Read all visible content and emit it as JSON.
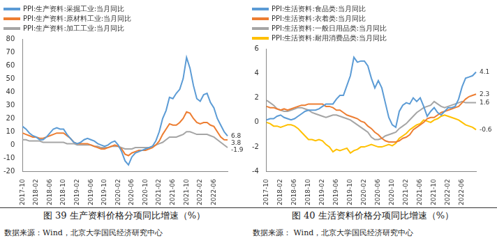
{
  "chart_data": [
    {
      "type": "line",
      "title": "图 39 生产资料价格分项同比增速（%）",
      "source": "数据来源：Wind，北京大学国民经济研究中心",
      "legend": "top",
      "categories": [
        "2017-10",
        null,
        null,
        null,
        "2018-02",
        null,
        null,
        null,
        "2018-06",
        null,
        null,
        null,
        "2018-10",
        null,
        null,
        null,
        "2019-02",
        null,
        null,
        null,
        "2019-06",
        null,
        null,
        null,
        "2019-10",
        null,
        null,
        null,
        "2020-02",
        null,
        null,
        null,
        "2020-06",
        null,
        null,
        null,
        "2020-10",
        null,
        null,
        null,
        "2021-02",
        null,
        null,
        null,
        "2021-06",
        null,
        null,
        null,
        "2021-10",
        null,
        null,
        null,
        "2022-02",
        null,
        null,
        null,
        "2022-06",
        null,
        null,
        null,
        null
      ],
      "ylim": [
        -20,
        80
      ],
      "yticks": [
        -20,
        -10,
        0,
        10,
        20,
        30,
        40,
        50,
        60,
        70,
        80
      ],
      "series": [
        {
          "name": "PPI:生产资料:采掘工业:当月同比",
          "color": "#5b9bd5",
          "values": [
            14,
            12,
            9,
            7,
            6,
            4,
            4,
            6,
            9,
            12,
            13,
            12,
            12,
            8,
            5,
            2,
            1,
            2,
            4,
            5,
            4,
            3,
            1,
            0,
            -1,
            0,
            2,
            3,
            0,
            -5,
            -12,
            -15,
            -9,
            -6,
            -5,
            -4,
            -3,
            -2,
            -1,
            3,
            10,
            20,
            26,
            36,
            35,
            39,
            42,
            50,
            66,
            58,
            45,
            35,
            33,
            38,
            39,
            32,
            28,
            20,
            15,
            10,
            6.8
          ],
          "value_labels": [
            null,
            null,
            null,
            null,
            null,
            null,
            null,
            null,
            null,
            null,
            null,
            null,
            null,
            null,
            null,
            null,
            null,
            null,
            null,
            null,
            null,
            null,
            null,
            null,
            null,
            null,
            null,
            null,
            null,
            null,
            null,
            null,
            null,
            null,
            null,
            null,
            null,
            null,
            null,
            null,
            null,
            null,
            null,
            null,
            null,
            null,
            null,
            null,
            null,
            null,
            null,
            null,
            null,
            null,
            null,
            null,
            null,
            null,
            null,
            null,
            "6.8"
          ]
        },
        {
          "name": "PPI:生产资料:原材料工业:当月同比",
          "color": "#ed7d31",
          "values": [
            9,
            8,
            7,
            6,
            6,
            5,
            5,
            6,
            7,
            8,
            9,
            9,
            9,
            7,
            5,
            2,
            1,
            1,
            1,
            1,
            0,
            -1,
            -2,
            -3,
            -3,
            -2,
            -1,
            0,
            -1,
            -3,
            -7,
            -8,
            -6,
            -5,
            -4,
            -4,
            -4,
            -3,
            -2,
            0,
            3,
            8,
            12,
            16,
            15,
            15,
            17,
            20,
            25,
            24,
            20,
            17,
            16,
            17,
            17,
            15,
            14,
            10,
            6,
            4,
            3.8
          ],
          "value_labels": [
            null,
            null,
            null,
            null,
            null,
            null,
            null,
            null,
            null,
            null,
            null,
            null,
            null,
            null,
            null,
            null,
            null,
            null,
            null,
            null,
            null,
            null,
            null,
            null,
            null,
            null,
            null,
            null,
            null,
            null,
            null,
            null,
            null,
            null,
            null,
            null,
            null,
            null,
            null,
            null,
            null,
            null,
            null,
            null,
            null,
            null,
            null,
            null,
            null,
            null,
            null,
            null,
            null,
            null,
            null,
            null,
            null,
            null,
            null,
            null,
            "3.8"
          ]
        },
        {
          "name": "PPI:生产资料:加工工业:当月同比",
          "color": "#a5a5a5",
          "values": [
            4,
            4,
            3,
            3,
            3,
            3,
            2,
            2,
            2,
            2,
            2,
            2,
            2,
            1,
            1,
            1,
            0,
            0,
            0,
            0,
            0,
            -1,
            -1,
            -2,
            -2,
            -2,
            -1,
            -1,
            -1,
            -2,
            -3,
            -3,
            -3,
            -2,
            -2,
            -2,
            -2,
            -2,
            -1,
            0,
            1,
            2,
            4,
            6,
            6,
            6,
            7,
            8,
            10,
            10,
            9,
            8,
            8,
            8,
            8,
            7,
            6,
            4,
            2,
            0,
            -1.9
          ],
          "value_labels": [
            null,
            null,
            null,
            null,
            null,
            null,
            null,
            null,
            null,
            null,
            null,
            null,
            null,
            null,
            null,
            null,
            null,
            null,
            null,
            null,
            null,
            null,
            null,
            null,
            null,
            null,
            null,
            null,
            null,
            null,
            null,
            null,
            null,
            null,
            null,
            null,
            null,
            null,
            null,
            null,
            null,
            null,
            null,
            null,
            null,
            null,
            null,
            null,
            null,
            null,
            null,
            null,
            null,
            null,
            null,
            null,
            null,
            null,
            null,
            null,
            "-1.9"
          ]
        }
      ]
    },
    {
      "type": "line",
      "title": "图 40 生活资料价格分项同比增速（%）",
      "source": "数据来源：  Wind，北京大学国民经济研究中心",
      "legend": "top",
      "categories": [
        "2017-10",
        null,
        null,
        null,
        "2018-02",
        null,
        null,
        null,
        "2018-06",
        null,
        null,
        null,
        "2018-10",
        null,
        null,
        null,
        "2019-02",
        null,
        null,
        null,
        "2019-06",
        null,
        null,
        null,
        "2019-10",
        null,
        null,
        null,
        "2020-02",
        null,
        null,
        null,
        "2020-06",
        null,
        null,
        null,
        "2020-10",
        null,
        null,
        null,
        "2021-02",
        null,
        null,
        null,
        "2021-06",
        null,
        null,
        null,
        "2021-10",
        null,
        null,
        null,
        "2022-02",
        null,
        null,
        null,
        "2022-06",
        null,
        null,
        null,
        null
      ],
      "ylim": [
        -4,
        6
      ],
      "yticks": [
        -4,
        -2,
        0,
        2,
        4,
        6
      ],
      "series": [
        {
          "name": "PPI:生活资料:食品类:当月同比",
          "color": "#5b9bd5",
          "values": [
            0.2,
            0.3,
            0.3,
            0.5,
            0.6,
            0.4,
            0.3,
            0.2,
            0.3,
            0.5,
            0.7,
            0.9,
            1.0,
            1.0,
            1.0,
            1.1,
            1.3,
            1.5,
            1.5,
            1.5,
            1.9,
            2.2,
            2.2,
            3.0,
            3.8,
            5.3,
            4.9,
            5.0,
            5.0,
            4.6,
            3.6,
            2.8,
            3.4,
            2.8,
            1.6,
            0.4,
            -0.2,
            -0.4,
            0.9,
            1.4,
            1.6,
            1.5,
            2.0,
            1.7,
            2.0,
            1.3,
            0.5,
            0.9,
            1.2,
            0.8,
            0.6,
            0.9,
            1.2,
            1.2,
            1.3,
            1.9,
            2.9,
            3.6,
            3.7,
            3.8,
            4.1
          ],
          "value_labels": [
            null,
            null,
            null,
            null,
            null,
            null,
            null,
            null,
            null,
            null,
            null,
            null,
            null,
            null,
            null,
            null,
            null,
            null,
            null,
            null,
            null,
            null,
            null,
            null,
            null,
            null,
            null,
            null,
            null,
            null,
            null,
            null,
            null,
            null,
            null,
            null,
            null,
            null,
            null,
            null,
            null,
            null,
            null,
            null,
            null,
            null,
            null,
            null,
            null,
            null,
            null,
            null,
            null,
            null,
            null,
            null,
            null,
            null,
            null,
            null,
            "4.1"
          ]
        },
        {
          "name": "PPI:生活资料:衣着类:当月同比",
          "color": "#ed7d31",
          "values": [
            1.3,
            1.2,
            1.2,
            1.1,
            1.0,
            1.1,
            1.0,
            1.1,
            1.2,
            1.3,
            1.4,
            1.4,
            1.5,
            1.5,
            1.5,
            1.5,
            1.5,
            1.3,
            1.3,
            1.2,
            1.0,
            1.0,
            0.8,
            0.6,
            0.5,
            0.4,
            0.3,
            0.1,
            0.0,
            -0.3,
            -0.5,
            -0.8,
            -1.0,
            -1.3,
            -1.5,
            -1.6,
            -1.6,
            -1.6,
            -1.5,
            -1.3,
            -1.2,
            -1.0,
            -0.6,
            -0.4,
            -0.2,
            0.0,
            0.3,
            0.4,
            0.4,
            0.6,
            0.8,
            0.9,
            1.0,
            1.1,
            1.2,
            1.3,
            1.6,
            1.9,
            2.1,
            2.2,
            2.3
          ],
          "value_labels": [
            null,
            null,
            null,
            null,
            null,
            null,
            null,
            null,
            null,
            null,
            null,
            null,
            null,
            null,
            null,
            null,
            null,
            null,
            null,
            null,
            null,
            null,
            null,
            null,
            null,
            null,
            null,
            null,
            null,
            null,
            null,
            null,
            null,
            null,
            null,
            null,
            null,
            null,
            null,
            null,
            null,
            null,
            null,
            null,
            null,
            null,
            null,
            null,
            null,
            null,
            null,
            null,
            null,
            null,
            null,
            null,
            null,
            null,
            null,
            null,
            "2.3"
          ]
        },
        {
          "name": "PPI:生活资料:一般日用品类:当月同比",
          "color": "#a5a5a5",
          "values": [
            1.8,
            1.6,
            1.4,
            1.1,
            1.0,
            0.9,
            0.9,
            1.0,
            1.1,
            1.2,
            1.2,
            1.1,
            1.0,
            0.8,
            0.7,
            0.6,
            0.5,
            0.4,
            0.5,
            0.6,
            0.6,
            0.5,
            0.4,
            0.3,
            0.2,
            0.0,
            -0.2,
            -0.4,
            -0.6,
            -0.8,
            -1.2,
            -1.4,
            -1.4,
            -1.3,
            -1.1,
            -1.0,
            -0.9,
            -0.8,
            -0.5,
            -0.3,
            -0.1,
            0.2,
            0.5,
            0.8,
            1.0,
            1.2,
            1.3,
            1.4,
            1.7,
            1.5,
            1.3,
            1.2,
            1.3,
            1.4,
            1.5,
            1.6,
            1.7,
            1.6,
            1.6,
            1.6,
            1.6
          ],
          "value_labels": [
            null,
            null,
            null,
            null,
            null,
            null,
            null,
            null,
            null,
            null,
            null,
            null,
            null,
            null,
            null,
            null,
            null,
            null,
            null,
            null,
            null,
            null,
            null,
            null,
            null,
            null,
            null,
            null,
            null,
            null,
            null,
            null,
            null,
            null,
            null,
            null,
            null,
            null,
            null,
            null,
            null,
            null,
            null,
            null,
            null,
            null,
            null,
            null,
            null,
            null,
            null,
            null,
            null,
            null,
            null,
            null,
            null,
            null,
            null,
            null,
            "1.6"
          ]
        },
        {
          "name": "PPI:生活资料:耐用消费品类:当月同比",
          "color": "#ffc000",
          "values": [
            0.0,
            -0.1,
            -0.3,
            -0.3,
            -0.4,
            -0.3,
            -0.2,
            -0.2,
            -0.3,
            -0.5,
            -0.8,
            -1.1,
            -1.4,
            -1.4,
            -1.5,
            -1.4,
            -1.5,
            -1.8,
            -2.0,
            -2.4,
            -2.2,
            -2.3,
            -2.2,
            -2.1,
            -2.5,
            -2.3,
            -2.2,
            -2.0,
            -2.0,
            -1.9,
            -1.8,
            -1.9,
            -2.0,
            -2.0,
            -1.9,
            -1.8,
            -1.9,
            -1.7,
            -1.3,
            -1.1,
            -0.9,
            -0.6,
            -0.4,
            -0.2,
            -0.1,
            0.2,
            0.1,
            0.0,
            0.2,
            0.3,
            0.5,
            0.6,
            0.5,
            0.4,
            0.3,
            0.2,
            0.0,
            -0.2,
            -0.3,
            -0.4,
            -0.6
          ],
          "value_labels": [
            null,
            null,
            null,
            null,
            null,
            null,
            null,
            null,
            null,
            null,
            null,
            null,
            null,
            null,
            null,
            null,
            null,
            null,
            null,
            null,
            null,
            null,
            null,
            null,
            null,
            null,
            null,
            null,
            null,
            null,
            null,
            null,
            null,
            null,
            null,
            null,
            null,
            null,
            null,
            null,
            null,
            null,
            null,
            null,
            null,
            null,
            null,
            null,
            null,
            null,
            null,
            null,
            null,
            null,
            null,
            null,
            null,
            null,
            null,
            null,
            "-0.6"
          ]
        }
      ]
    }
  ]
}
